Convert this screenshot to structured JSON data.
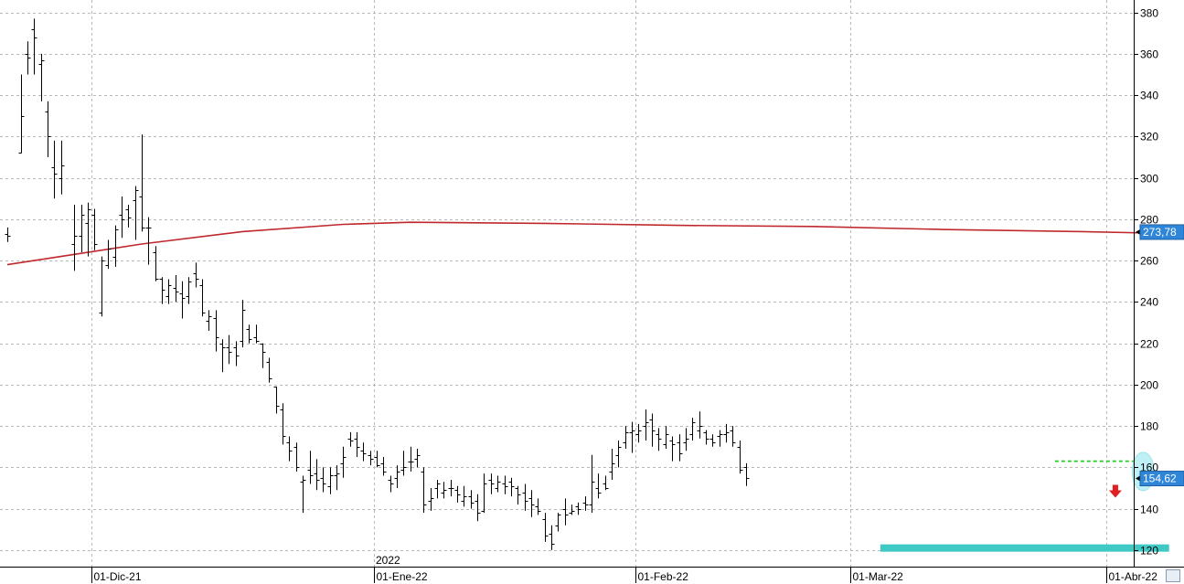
{
  "chart_data": {
    "type": "ohlc",
    "ylim": [
      112,
      386
    ],
    "yticks": [
      120,
      140,
      160,
      180,
      200,
      220,
      240,
      260,
      280,
      300,
      320,
      340,
      360,
      380
    ],
    "year_label": "2022",
    "date_labels": [
      "01-Dic-21",
      "01-Ene-22",
      "01-Feb-22",
      "01-Mar-22",
      "01-Abr-22"
    ],
    "date_label_bar_index": [
      13,
      55,
      94,
      126,
      164
    ],
    "grid": true,
    "colors": {
      "bars": "#000000",
      "moving_average": "#c0282d",
      "support_zone": "#3ec9c5",
      "resistance_line": "#22cc22",
      "badge": "#2f86d8",
      "arrow": "#e02020",
      "highlight_ellipse": "#bff0f5"
    },
    "bars": [
      [
        273,
        276,
        269,
        272
      ],
      [
        0,
        0,
        0,
        0
      ],
      [
        312,
        350,
        312,
        330
      ],
      [
        360,
        366,
        350,
        358
      ],
      [
        372,
        377,
        350,
        368
      ],
      [
        355,
        360,
        337,
        357
      ],
      [
        332,
        337,
        310,
        320
      ],
      [
        305,
        318,
        290,
        302
      ],
      [
        300,
        318,
        292,
        306
      ],
      [
        0,
        0,
        0,
        0
      ],
      [
        268,
        287,
        255,
        272
      ],
      [
        272,
        287,
        264,
        282
      ],
      [
        278,
        288,
        262,
        285
      ],
      [
        282,
        285,
        265,
        268
      ],
      [
        235,
        262,
        233,
        260
      ],
      [
        258,
        270,
        256,
        266
      ],
      [
        262,
        277,
        257,
        275
      ],
      [
        282,
        291,
        271,
        280
      ],
      [
        285,
        287,
        276,
        281
      ],
      [
        289,
        296,
        270,
        294
      ],
      [
        291,
        321,
        274,
        276
      ],
      [
        276,
        281,
        258,
        276
      ],
      [
        264,
        267,
        250,
        251
      ],
      [
        251,
        252,
        239,
        246
      ],
      [
        243,
        251,
        239,
        248
      ],
      [
        247,
        253,
        240,
        245
      ],
      [
        244,
        250,
        232,
        242
      ],
      [
        243,
        252,
        239,
        250
      ],
      [
        254,
        259,
        247,
        251
      ],
      [
        248,
        251,
        233,
        235
      ],
      [
        231,
        236,
        226,
        233
      ],
      [
        232,
        236,
        216,
        223
      ],
      [
        220,
        222,
        206,
        218
      ],
      [
        218,
        224,
        210,
        216
      ],
      [
        218,
        221,
        209,
        214
      ],
      [
        221,
        241,
        218,
        236
      ],
      [
        227,
        229,
        220,
        222
      ],
      [
        223,
        229,
        220,
        221
      ],
      [
        220,
        220,
        208,
        216
      ],
      [
        211,
        213,
        201,
        203
      ],
      [
        199,
        199,
        186,
        190
      ],
      [
        188,
        191,
        171,
        175
      ],
      [
        172,
        175,
        163,
        168
      ],
      [
        170,
        172,
        158,
        160
      ],
      [
        153,
        156,
        138,
        154
      ],
      [
        159,
        168,
        152,
        156
      ],
      [
        157,
        164,
        149,
        154
      ],
      [
        155,
        160,
        148,
        152
      ],
      [
        151,
        160,
        147,
        156
      ],
      [
        156,
        161,
        149,
        157
      ],
      [
        162,
        170,
        155,
        165
      ],
      [
        174,
        177,
        170,
        173
      ],
      [
        174,
        177,
        165,
        170
      ],
      [
        168,
        172,
        163,
        167
      ],
      [
        166,
        168,
        161,
        164
      ],
      [
        165,
        168,
        160,
        161
      ],
      [
        162,
        165,
        156,
        158
      ],
      [
        154,
        156,
        148,
        152
      ],
      [
        155,
        161,
        150,
        158
      ],
      [
        159,
        168,
        156,
        160
      ],
      [
        163,
        170,
        158,
        163
      ],
      [
        164,
        169,
        160,
        166
      ],
      [
        158,
        160,
        138,
        142
      ],
      [
        144,
        150,
        139,
        145
      ],
      [
        150,
        154,
        145,
        152
      ],
      [
        148,
        153,
        145,
        149
      ],
      [
        150,
        154,
        146,
        150
      ],
      [
        149,
        151,
        143,
        147
      ],
      [
        144,
        151,
        141,
        146
      ],
      [
        146,
        149,
        140,
        143
      ],
      [
        144,
        147,
        134,
        138
      ],
      [
        139,
        157,
        138,
        152
      ],
      [
        154,
        157,
        147,
        152
      ],
      [
        150,
        156,
        148,
        153
      ],
      [
        152,
        156,
        147,
        151
      ],
      [
        153,
        155,
        146,
        151
      ],
      [
        150,
        151,
        142,
        147
      ],
      [
        148,
        152,
        139,
        144
      ],
      [
        145,
        149,
        136,
        142
      ],
      [
        141,
        145,
        137,
        139
      ],
      [
        135,
        138,
        124,
        127
      ],
      [
        128,
        132,
        120,
        123
      ],
      [
        132,
        138,
        129,
        137
      ],
      [
        140,
        145,
        132,
        137
      ],
      [
        138,
        142,
        137,
        139
      ],
      [
        141,
        143,
        137,
        140
      ],
      [
        143,
        146,
        139,
        142
      ],
      [
        142,
        166,
        138,
        153
      ],
      [
        150,
        157,
        145,
        148
      ],
      [
        152,
        156,
        149,
        150
      ],
      [
        158,
        169,
        154,
        162
      ],
      [
        166,
        173,
        160,
        170
      ],
      [
        172,
        180,
        169,
        177
      ],
      [
        177,
        182,
        167,
        178
      ],
      [
        176,
        181,
        172,
        178
      ],
      [
        180,
        188,
        173,
        182
      ],
      [
        183,
        186,
        170,
        178
      ],
      [
        176,
        179,
        168,
        174
      ],
      [
        171,
        180,
        169,
        176
      ],
      [
        173,
        175,
        163,
        171
      ],
      [
        172,
        176,
        163,
        167
      ],
      [
        172,
        179,
        168,
        174
      ],
      [
        176,
        184,
        173,
        182
      ],
      [
        178,
        187,
        174,
        180
      ],
      [
        177,
        178,
        171,
        174
      ],
      [
        174,
        176,
        170,
        172
      ],
      [
        175,
        178,
        170,
        176
      ],
      [
        176,
        181,
        172,
        177
      ],
      [
        178,
        180,
        170,
        172
      ],
      [
        170,
        173,
        157,
        159
      ],
      [
        160,
        162,
        151,
        155
      ]
    ],
    "moving_average": {
      "points": [
        [
          0,
          258
        ],
        [
          10,
          263
        ],
        [
          20,
          268
        ],
        [
          35,
          274
        ],
        [
          50,
          277.5
        ],
        [
          60,
          278.5
        ],
        [
          80,
          278
        ],
        [
          100,
          277
        ],
        [
          120,
          276.5
        ],
        [
          140,
          275
        ],
        [
          160,
          274
        ],
        [
          170,
          273.3
        ]
      ],
      "last_value_label": "273,78"
    },
    "last_price_label": "154,62",
    "annotations": {
      "support_zone": {
        "y": 121,
        "from_bar": 130,
        "to_bar": 173
      },
      "resistance_line": {
        "y": 163,
        "from_bar": 156,
        "to_bar": 170
      },
      "sell_arrow": {
        "bar": 165,
        "y": 148
      },
      "highlight_ellipse": {
        "bar": 169,
        "y": 158
      }
    }
  }
}
